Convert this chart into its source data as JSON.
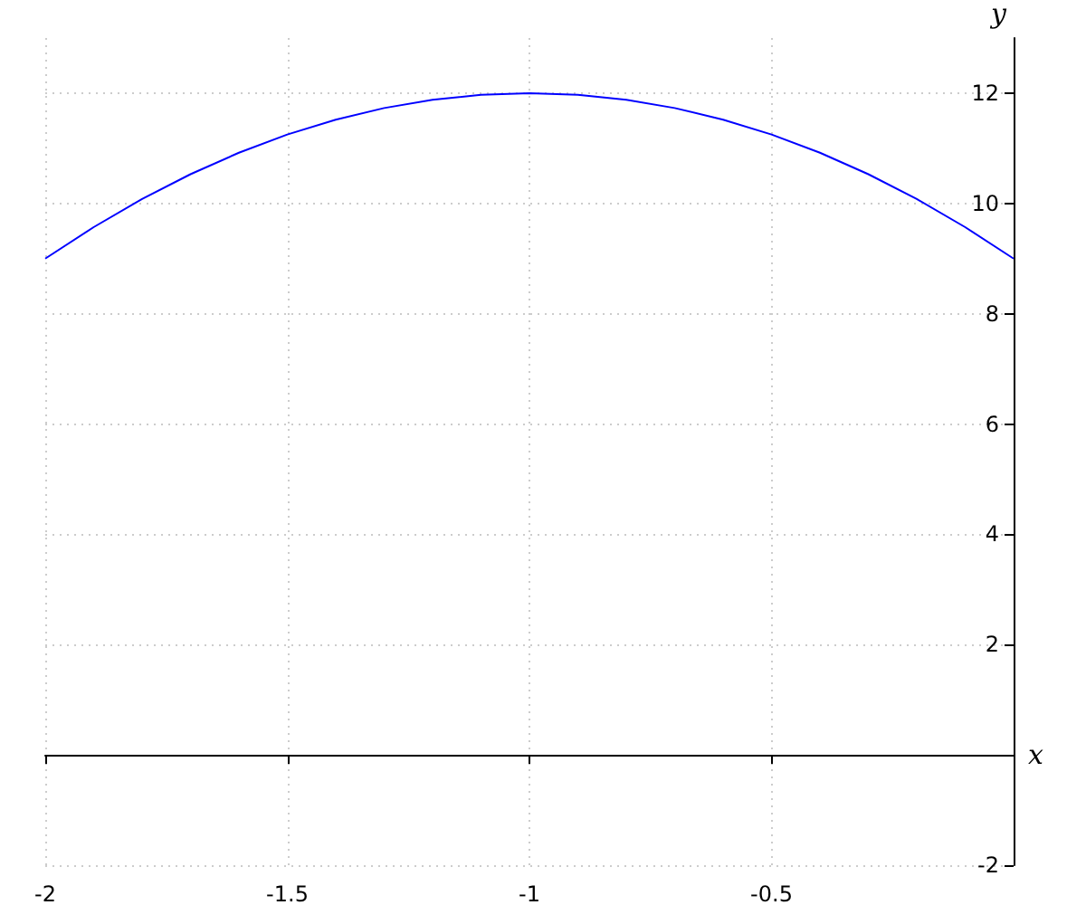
{
  "chart_data": {
    "type": "line",
    "xlabel": "x",
    "ylabel": "y",
    "x": [
      -2,
      -1.9,
      -1.8,
      -1.7,
      -1.6,
      -1.5,
      -1.4,
      -1.3,
      -1.2,
      -1.1,
      -1,
      -0.9,
      -0.8,
      -0.7,
      -0.6,
      -0.5,
      -0.4,
      -0.3,
      -0.2,
      -0.1,
      0
    ],
    "series": [
      {
        "color": "#0000ff",
        "values": [
          9,
          9.57,
          10.08,
          10.53,
          10.92,
          11.25,
          11.52,
          11.73,
          11.88,
          11.97,
          12,
          11.97,
          11.88,
          11.73,
          11.52,
          11.25,
          10.92,
          10.53,
          10.08,
          9.57,
          9
        ]
      }
    ],
    "xlim": [
      -2,
      0
    ],
    "xticks": [
      -2,
      -1.5,
      -1,
      -0.5
    ],
    "ylim": [
      -2,
      13
    ],
    "yticks": [
      -2,
      2,
      4,
      6,
      8,
      10,
      12
    ],
    "grid": true,
    "marker": "none",
    "line_style": "solid"
  }
}
